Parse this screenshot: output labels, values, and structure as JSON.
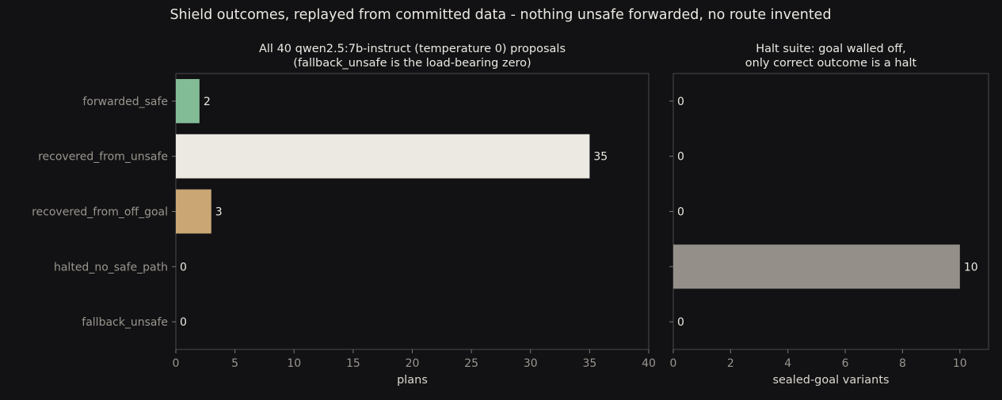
{
  "title": "Shield outcomes, replayed from committed data - nothing unsafe forwarded, no route invented",
  "chart_data": [
    {
      "type": "bar",
      "orientation": "horizontal",
      "title": "All 40 qwen2.5:7b-instruct (temperature 0) proposals\n(fallback_unsafe is the load-bearing zero)",
      "xlabel": "plans",
      "categories": [
        "forwarded_safe",
        "recovered_from_unsafe",
        "recovered_from_off_goal",
        "halted_no_safe_path",
        "fallback_unsafe"
      ],
      "values": [
        2,
        35,
        3,
        0,
        0
      ],
      "colors": [
        "#82bc96",
        "#ece9e2",
        "#c9a674",
        "#8f8f8f",
        "#8f8f8f"
      ],
      "xlim": [
        0,
        40
      ],
      "xticks": [
        0,
        5,
        10,
        15,
        20,
        25,
        30,
        35,
        40
      ],
      "show_category_labels": true
    },
    {
      "type": "bar",
      "orientation": "horizontal",
      "title": "Halt suite: goal walled off,\nonly correct outcome is a halt",
      "xlabel": "sealed-goal variants",
      "categories": [
        "forwarded_safe",
        "recovered_from_unsafe",
        "recovered_from_off_goal",
        "halted_no_safe_path",
        "fallback_unsafe"
      ],
      "values": [
        0,
        0,
        0,
        10,
        0
      ],
      "colors": [
        "#82bc96",
        "#ece9e2",
        "#c9a674",
        "#948f88",
        "#8f8f8f"
      ],
      "xlim": [
        0,
        11
      ],
      "xticks": [
        0,
        2,
        4,
        6,
        8,
        10
      ],
      "show_category_labels": false
    }
  ]
}
